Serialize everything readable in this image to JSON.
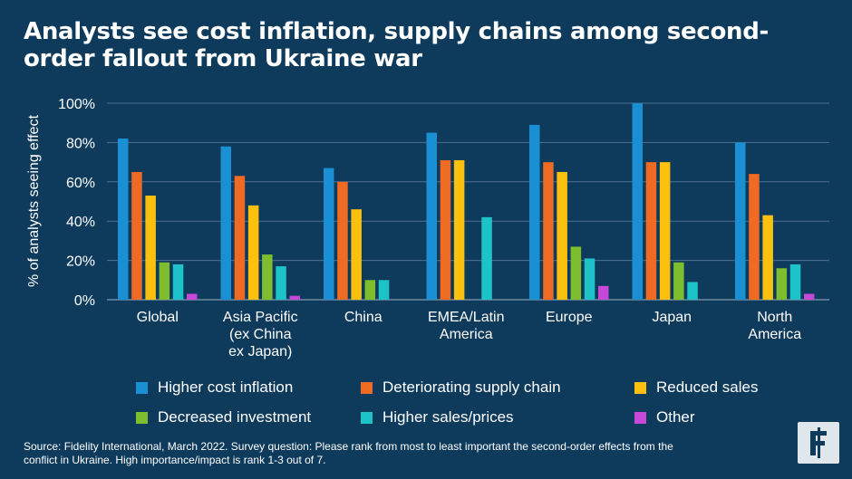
{
  "header": {
    "title": "Analysts see cost inflation, supply chains among second-order fallout from Ukraine war"
  },
  "chart_data": {
    "type": "bar",
    "ylabel": "% of analysts seeing effect",
    "ylim": [
      0,
      100
    ],
    "yticks": [
      "0%",
      "20%",
      "40%",
      "60%",
      "80%",
      "100%"
    ],
    "grid": true,
    "legend_position": "bottom",
    "categories": [
      [
        "Global"
      ],
      [
        "Asia Pacific",
        "(ex China",
        "ex Japan)"
      ],
      [
        "China"
      ],
      [
        "EMEA/Latin",
        "America"
      ],
      [
        "Europe"
      ],
      [
        "Japan"
      ],
      [
        "North",
        "America"
      ]
    ],
    "series": [
      {
        "name": "Higher cost inflation",
        "color": "#1a8fd4",
        "values": [
          82,
          78,
          67,
          85,
          89,
          100,
          80
        ]
      },
      {
        "name": "Deteriorating supply chain",
        "color": "#ef6a23",
        "values": [
          65,
          63,
          60,
          71,
          70,
          70,
          64
        ]
      },
      {
        "name": "Reduced sales",
        "color": "#fcc10e",
        "values": [
          53,
          48,
          46,
          71,
          65,
          70,
          43
        ]
      },
      {
        "name": "Decreased investment",
        "color": "#7dbd2e",
        "values": [
          19,
          23,
          10,
          0,
          27,
          19,
          16
        ]
      },
      {
        "name": "Higher sales/prices",
        "color": "#1ec3c9",
        "values": [
          18,
          17,
          10,
          42,
          21,
          9,
          18
        ]
      },
      {
        "name": "Other",
        "color": "#c548d8",
        "values": [
          3,
          2,
          0,
          0,
          7,
          0,
          3
        ]
      }
    ]
  },
  "footer": {
    "source_line1": "Source: Fidelity International, March 2022. Survey question: Please rank from most to least important the second-order effects from the",
    "source_line2": "conflict in Ukraine. High importance/impact is rank 1-3 out of 7.",
    "logo_icon": "fidelity-logo-icon"
  }
}
